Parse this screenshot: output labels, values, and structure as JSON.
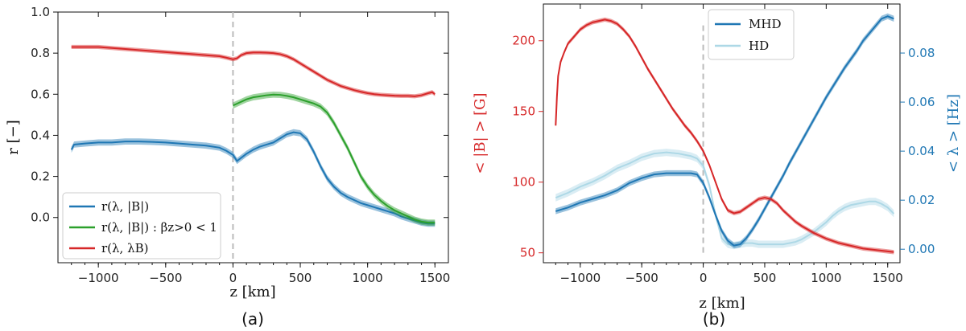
{
  "chart_data": [
    {
      "type": "line",
      "caption": "(a)",
      "xlabel": "z [km]",
      "ylabel": "r [−]",
      "xlim": [
        -1300,
        1600
      ],
      "ylim": [
        -0.22,
        1.0
      ],
      "xticks": [
        -1000,
        -500,
        0,
        500,
        1000,
        1500
      ],
      "xtick_labels": [
        "−1000",
        "−500",
        "0",
        "500",
        "1000",
        "1500"
      ],
      "yticks": [
        0.0,
        0.2,
        0.4,
        0.6,
        0.8,
        1.0
      ],
      "ytick_labels": [
        "0.0",
        "0.2",
        "0.4",
        "0.6",
        "0.8",
        "1.0"
      ],
      "vline_x": 0,
      "legend_position": "lower-left",
      "series": [
        {
          "name": "r(λ, |B|)",
          "color": "#1f77b4",
          "band": 0.015,
          "x": [
            -1200,
            -1180,
            -1100,
            -1000,
            -900,
            -800,
            -700,
            -600,
            -500,
            -400,
            -300,
            -200,
            -100,
            -50,
            0,
            30,
            60,
            100,
            150,
            200,
            250,
            300,
            350,
            400,
            450,
            500,
            550,
            600,
            650,
            700,
            750,
            800,
            850,
            900,
            950,
            1000,
            1050,
            1100,
            1150,
            1200,
            1250,
            1300,
            1350,
            1400,
            1450,
            1500
          ],
          "y": [
            0.33,
            0.355,
            0.36,
            0.365,
            0.365,
            0.37,
            0.37,
            0.368,
            0.365,
            0.36,
            0.355,
            0.35,
            0.34,
            0.325,
            0.305,
            0.275,
            0.29,
            0.31,
            0.33,
            0.345,
            0.355,
            0.365,
            0.385,
            0.405,
            0.415,
            0.41,
            0.38,
            0.32,
            0.25,
            0.19,
            0.15,
            0.12,
            0.1,
            0.085,
            0.07,
            0.06,
            0.05,
            0.04,
            0.03,
            0.02,
            0.005,
            -0.005,
            -0.015,
            -0.025,
            -0.03,
            -0.03
          ]
        },
        {
          "name": "r(λ, |B|) : βz>0 < 1",
          "color": "#2ca02c",
          "band": 0.015,
          "x": [
            0,
            50,
            100,
            150,
            200,
            250,
            300,
            350,
            400,
            450,
            500,
            550,
            600,
            650,
            700,
            750,
            800,
            850,
            900,
            950,
            1000,
            1050,
            1100,
            1150,
            1200,
            1250,
            1300,
            1350,
            1400,
            1450,
            1500
          ],
          "y": [
            0.545,
            0.56,
            0.575,
            0.585,
            0.59,
            0.595,
            0.598,
            0.597,
            0.592,
            0.585,
            0.575,
            0.565,
            0.555,
            0.54,
            0.51,
            0.46,
            0.4,
            0.34,
            0.27,
            0.2,
            0.15,
            0.11,
            0.08,
            0.055,
            0.035,
            0.02,
            0.005,
            -0.01,
            -0.02,
            -0.025,
            -0.025
          ]
        },
        {
          "name": "r(λ, λB)",
          "color": "#d62728",
          "band": 0.01,
          "x": [
            -1200,
            -1100,
            -1000,
            -900,
            -800,
            -700,
            -600,
            -500,
            -400,
            -300,
            -200,
            -100,
            -50,
            0,
            30,
            60,
            100,
            150,
            200,
            250,
            300,
            350,
            400,
            450,
            500,
            550,
            600,
            650,
            700,
            750,
            800,
            850,
            900,
            950,
            1000,
            1050,
            1100,
            1150,
            1200,
            1250,
            1300,
            1350,
            1400,
            1450,
            1480,
            1500
          ],
          "y": [
            0.83,
            0.83,
            0.83,
            0.825,
            0.82,
            0.815,
            0.81,
            0.805,
            0.8,
            0.795,
            0.79,
            0.785,
            0.778,
            0.77,
            0.775,
            0.79,
            0.8,
            0.803,
            0.803,
            0.802,
            0.8,
            0.795,
            0.785,
            0.77,
            0.75,
            0.73,
            0.71,
            0.69,
            0.67,
            0.655,
            0.64,
            0.63,
            0.62,
            0.612,
            0.605,
            0.6,
            0.597,
            0.595,
            0.593,
            0.592,
            0.592,
            0.59,
            0.595,
            0.605,
            0.61,
            0.6
          ]
        }
      ],
      "legend": [
        "r(λ, |B|)",
        "r(λ, |B|) : βz>0 < 1",
        "r(λ, λB)"
      ]
    },
    {
      "type": "line",
      "caption": "(b)",
      "xlabel": "z [km]",
      "ylabel_left": "< |B| > [G]",
      "ylabel_right": "< λ > [Hz]",
      "xlim": [
        -1300,
        1600
      ],
      "ylim_left": [
        43,
        226
      ],
      "ylim_right": [
        -0.0055,
        0.1
      ],
      "xticks": [
        -1000,
        -500,
        0,
        500,
        1000,
        1500
      ],
      "xtick_labels": [
        "−1000",
        "−500",
        "0",
        "500",
        "1000",
        "1500"
      ],
      "yticks_left": [
        50,
        100,
        150,
        200
      ],
      "ytick_labels_left": [
        "50",
        "100",
        "150",
        "200"
      ],
      "yticks_right": [
        0.0,
        0.02,
        0.04,
        0.06,
        0.08
      ],
      "ytick_labels_right": [
        "0.00",
        "0.02",
        "0.04",
        "0.06",
        "0.08"
      ],
      "left_axis_color": "#d62728",
      "right_axis_color": "#1f77b4",
      "vline_x": 0,
      "legend_position": "top-center",
      "legend": [
        "MHD",
        "HD"
      ],
      "series": [
        {
          "name": "<|B|>",
          "axis": "left",
          "color": "#d62728",
          "band": 1.5,
          "x": [
            -1200,
            -1190,
            -1180,
            -1160,
            -1130,
            -1100,
            -1050,
            -1000,
            -950,
            -900,
            -850,
            -800,
            -750,
            -700,
            -650,
            -600,
            -550,
            -500,
            -450,
            -400,
            -350,
            -300,
            -250,
            -200,
            -150,
            -100,
            -50,
            0,
            50,
            100,
            150,
            200,
            250,
            300,
            350,
            400,
            450,
            500,
            550,
            600,
            650,
            700,
            750,
            800,
            900,
            1000,
            1100,
            1200,
            1300,
            1400,
            1500,
            1550
          ],
          "y": [
            140,
            160,
            175,
            185,
            192,
            198,
            203,
            208,
            211,
            213,
            214,
            215,
            214,
            212,
            208,
            203,
            196,
            188,
            180,
            173,
            166,
            159,
            152,
            146,
            140,
            135,
            129,
            122,
            112,
            100,
            88,
            80,
            78,
            79,
            82,
            85,
            88,
            89,
            88,
            85,
            80,
            76,
            72,
            69,
            64,
            60,
            57,
            55,
            53,
            52,
            51,
            50.5
          ]
        },
        {
          "name": "MHD",
          "axis": "right",
          "color": "#1f77b4",
          "band": 0.0012,
          "x": [
            -1200,
            -1100,
            -1000,
            -900,
            -800,
            -700,
            -600,
            -500,
            -400,
            -300,
            -200,
            -100,
            -50,
            0,
            50,
            100,
            150,
            200,
            250,
            300,
            350,
            400,
            450,
            500,
            550,
            600,
            650,
            700,
            750,
            800,
            850,
            900,
            950,
            1000,
            1050,
            1100,
            1150,
            1200,
            1250,
            1300,
            1350,
            1400,
            1450,
            1500,
            1550
          ],
          "y": [
            0.0155,
            0.017,
            0.019,
            0.0205,
            0.022,
            0.024,
            0.027,
            0.029,
            0.0305,
            0.031,
            0.031,
            0.031,
            0.0305,
            0.027,
            0.021,
            0.014,
            0.0075,
            0.0035,
            0.0015,
            0.002,
            0.0045,
            0.008,
            0.012,
            0.0165,
            0.021,
            0.0255,
            0.03,
            0.035,
            0.0395,
            0.044,
            0.0485,
            0.053,
            0.0575,
            0.062,
            0.066,
            0.07,
            0.074,
            0.0775,
            0.081,
            0.085,
            0.088,
            0.091,
            0.094,
            0.095,
            0.094
          ]
        },
        {
          "name": "HD",
          "axis": "right",
          "color": "#add8e6",
          "band": 0.0015,
          "x": [
            -1200,
            -1100,
            -1000,
            -900,
            -800,
            -700,
            -600,
            -500,
            -400,
            -300,
            -200,
            -100,
            -50,
            0,
            50,
            100,
            150,
            200,
            250,
            300,
            350,
            400,
            450,
            500,
            550,
            600,
            650,
            700,
            750,
            800,
            850,
            900,
            950,
            1000,
            1050,
            1100,
            1150,
            1200,
            1250,
            1300,
            1350,
            1400,
            1450,
            1500,
            1550
          ],
          "y": [
            0.021,
            0.023,
            0.0255,
            0.0275,
            0.03,
            0.033,
            0.035,
            0.0375,
            0.039,
            0.0395,
            0.039,
            0.038,
            0.037,
            0.034,
            0.026,
            0.014,
            0.0045,
            0.002,
            0.0015,
            0.002,
            0.0025,
            0.0025,
            0.002,
            0.002,
            0.002,
            0.002,
            0.002,
            0.0025,
            0.003,
            0.004,
            0.0055,
            0.007,
            0.009,
            0.011,
            0.0135,
            0.0155,
            0.017,
            0.018,
            0.0185,
            0.019,
            0.0195,
            0.0195,
            0.0185,
            0.017,
            0.0145
          ]
        }
      ]
    }
  ]
}
